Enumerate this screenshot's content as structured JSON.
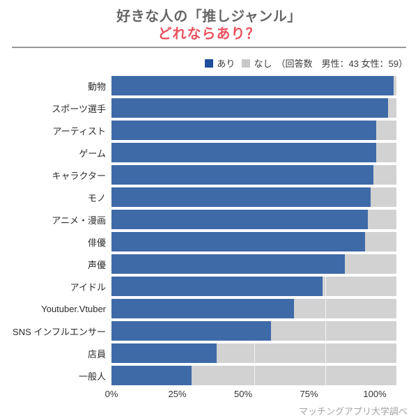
{
  "header": {
    "title_line1": "好きな人の「推しジャンル」",
    "title_line2": "どれならあり？"
  },
  "legend": {
    "yes_label": "あり",
    "no_label": "なし",
    "respondents_note": "（回答数　男性：43 女性：59）"
  },
  "footer": {
    "source": "マッチングアプリ大学調べ"
  },
  "colors": {
    "bar_yes_blue": "#3f6aa8",
    "bar_no_gray": "#d2d2d2",
    "legend_yes_blue": "#1e4e9c",
    "legend_no_gray": "#c8c8c8",
    "title_gray": "#666666",
    "title_red": "#e8515f",
    "divider_gray": "#979797",
    "footer_gray": "#a3a3a3"
  },
  "chart_data": {
    "type": "bar",
    "orientation": "horizontal",
    "stacked": true,
    "title": "好きな人の「推しジャンル」どれならあり？",
    "xlabel": "",
    "ylabel": "",
    "xlim": [
      0,
      100
    ],
    "x_tick_labels": [
      "0%",
      "25%",
      "50%",
      "75%",
      "100%"
    ],
    "x_tick_values": [
      0,
      25,
      50,
      75,
      100
    ],
    "grid_x": [
      25,
      50,
      75
    ],
    "legend_position": "top-right",
    "unit": "%",
    "categories": [
      "動物",
      "スポーツ選手",
      "アーティスト",
      "ゲーム",
      "キャラクター",
      "モノ",
      "アニメ・漫画",
      "俳優",
      "声優",
      "アイドル",
      "Youtuber.Vtuber",
      "SNS インフルエンサー",
      "店員",
      "一般人"
    ],
    "series": [
      {
        "name": "あり",
        "values": [
          99,
          97,
          93,
          93,
          92,
          91,
          90,
          89,
          82,
          74,
          64,
          56,
          37,
          28
        ]
      },
      {
        "name": "なし",
        "values": [
          1,
          3,
          7,
          7,
          8,
          9,
          10,
          11,
          18,
          26,
          36,
          44,
          63,
          72
        ]
      }
    ]
  }
}
